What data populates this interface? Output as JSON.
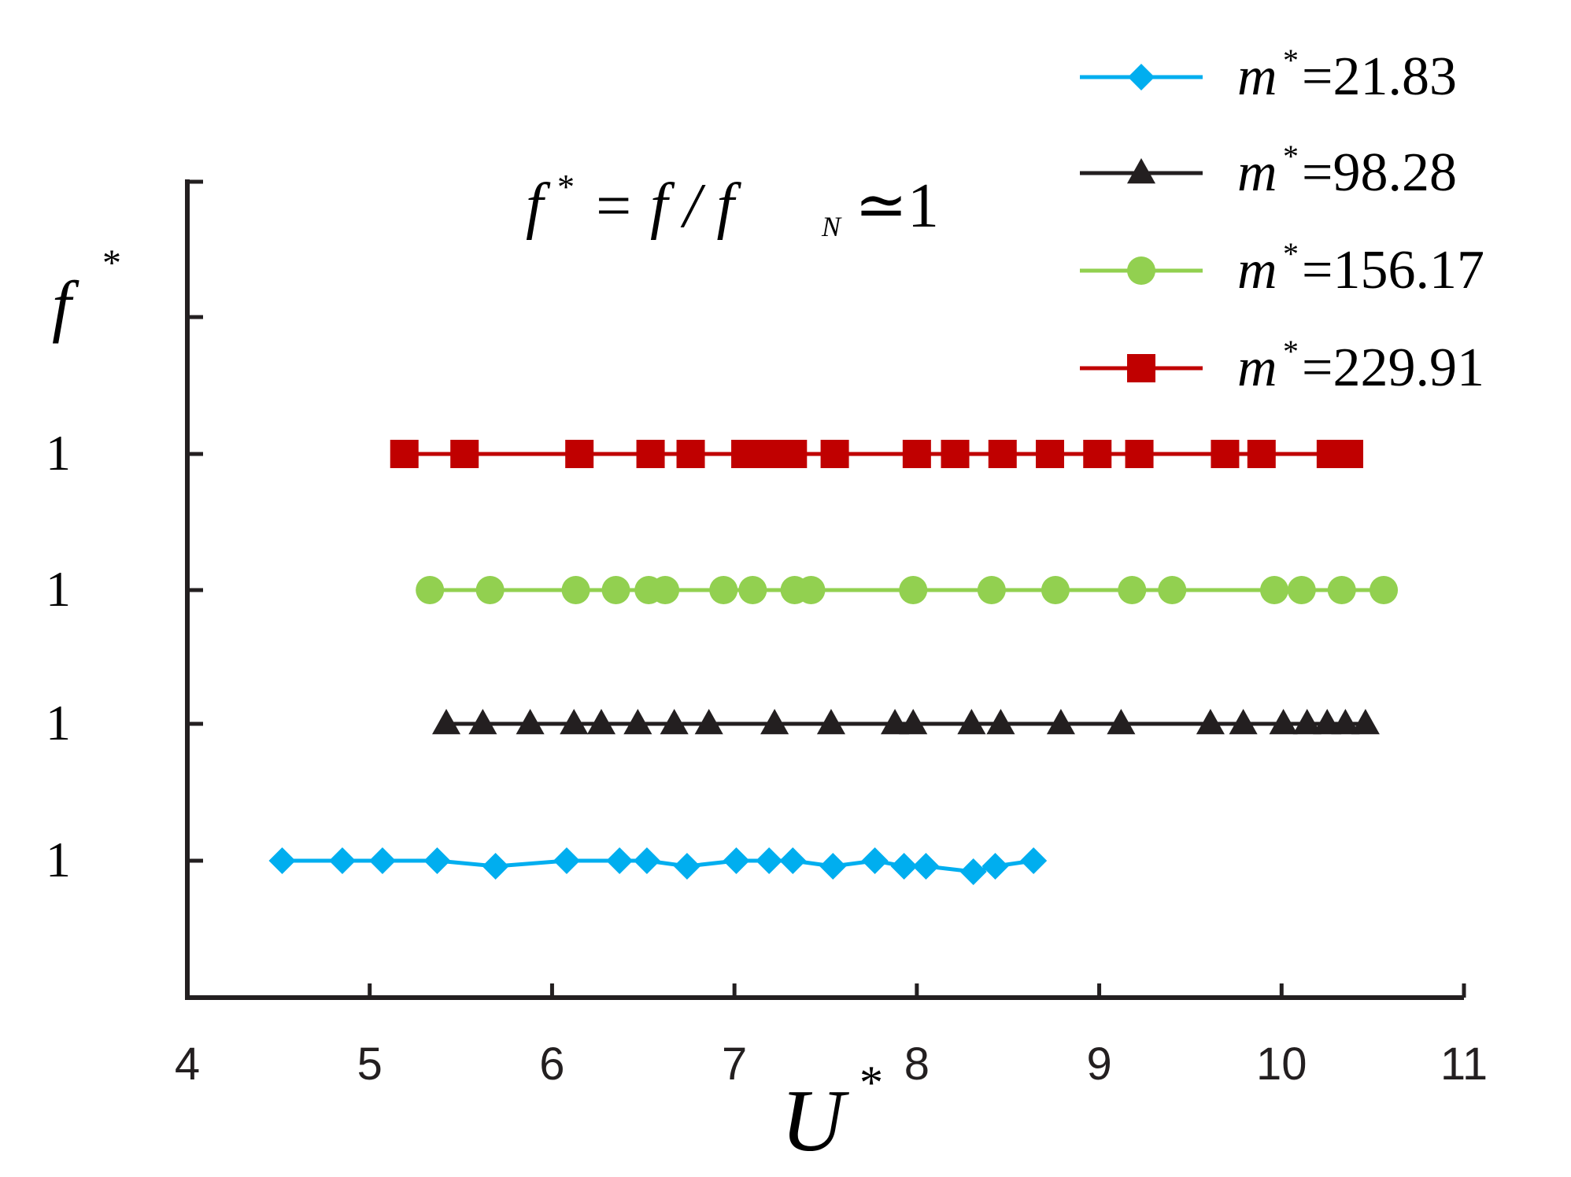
{
  "chart_data": {
    "type": "line",
    "annotation": {
      "base": "f",
      "sup": "*",
      "eq": "= f / f",
      "sub": "N",
      "rest": "≃1"
    },
    "xlabel": {
      "base": "U",
      "sup": "*"
    },
    "ylabel": {
      "base": "f",
      "sup": "*"
    },
    "xlim": [
      4,
      11
    ],
    "x_ticks": [
      "4",
      "5",
      "6",
      "7",
      "8",
      "9",
      "10",
      "11"
    ],
    "y_tick_labels": [
      "1",
      "1",
      "1",
      "1"
    ],
    "legend_position": "top-right",
    "grid": false,
    "series": [
      {
        "name": "m*=21.83",
        "legend_base": "m",
        "legend_sup": "*",
        "legend_value": "=21.83",
        "color": "#00aeef",
        "marker": "diamond",
        "x": [
          4.52,
          4.85,
          5.07,
          5.37,
          5.69,
          6.08,
          6.37,
          6.52,
          6.74,
          7.01,
          7.19,
          7.32,
          7.54,
          7.77,
          7.93,
          8.05,
          8.31,
          8.43,
          8.64
        ],
        "y": [
          1.0,
          1.0,
          1.0,
          1.0,
          0.99,
          1.0,
          1.0,
          1.0,
          0.99,
          1.0,
          1.0,
          1.0,
          0.99,
          1.0,
          0.99,
          0.99,
          0.98,
          0.99,
          1.0
        ]
      },
      {
        "name": "m*=98.28",
        "legend_base": "m",
        "legend_sup": "*",
        "legend_value": "=98.28",
        "color": "#231f20",
        "marker": "triangle",
        "x": [
          5.42,
          5.62,
          5.88,
          6.12,
          6.27,
          6.47,
          6.67,
          6.86,
          7.22,
          7.53,
          7.88,
          7.98,
          8.3,
          8.46,
          8.79,
          9.12,
          9.61,
          9.79,
          10.01,
          10.14,
          10.25,
          10.35,
          10.46
        ],
        "y": [
          1,
          1,
          1,
          1,
          1,
          1,
          1,
          1,
          1,
          1,
          1,
          1,
          1,
          1,
          1,
          1,
          1,
          1,
          1,
          1,
          1,
          1,
          1
        ]
      },
      {
        "name": "m*=156.17",
        "legend_base": "m",
        "legend_sup": "*",
        "legend_value": "=156.17",
        "color": "#92d050",
        "marker": "circle",
        "x": [
          5.33,
          5.66,
          6.13,
          6.35,
          6.53,
          6.62,
          6.94,
          7.1,
          7.33,
          7.42,
          7.98,
          8.41,
          8.76,
          9.18,
          9.4,
          9.96,
          10.11,
          10.33,
          10.56
        ],
        "y": [
          1,
          1,
          1,
          1,
          1,
          1,
          1,
          1,
          1,
          1,
          1,
          1,
          1,
          1,
          1,
          1,
          1,
          1,
          1
        ]
      },
      {
        "name": "m*=229.91",
        "legend_base": "m",
        "legend_sup": "*",
        "legend_value": "=229.91",
        "color": "#c00000",
        "marker": "square",
        "x": [
          5.19,
          5.52,
          6.15,
          6.54,
          6.76,
          7.06,
          7.18,
          7.32,
          7.55,
          8.0,
          8.21,
          8.47,
          8.73,
          8.99,
          9.22,
          9.69,
          9.89,
          10.27,
          10.37
        ],
        "y": [
          1,
          1,
          1,
          1,
          1,
          1,
          1,
          1,
          1,
          1,
          1,
          1,
          1,
          1,
          1,
          1,
          1,
          1,
          1
        ]
      }
    ]
  }
}
